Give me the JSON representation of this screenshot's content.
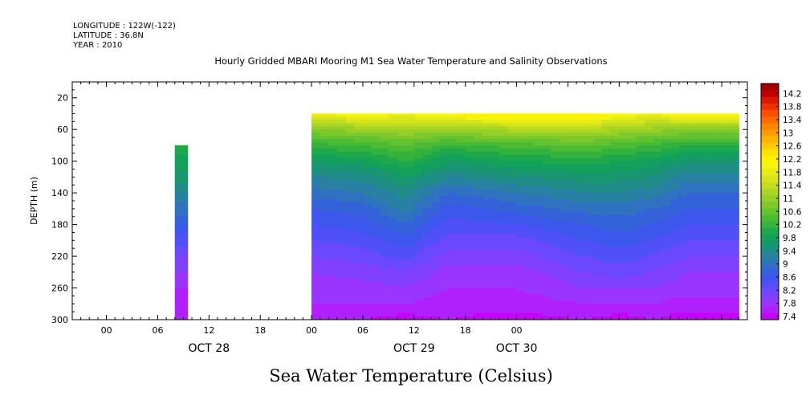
{
  "header": {
    "longitude": "LONGITUDE : 122W(-122)",
    "latitude": "LATITUDE : 36.8N",
    "year": "YEAR : 2010"
  },
  "chart_data": {
    "type": "heatmap",
    "title": "Hourly Gridded MBARI Mooring M1 Sea Water Temperature and Salinity Observations",
    "variable_label": "Sea Water Temperature (Celsius)",
    "ylabel": "DEPTH (m)",
    "y_inverted": true,
    "ylim": [
      0,
      300
    ],
    "y_ticks": [
      20,
      60,
      100,
      140,
      180,
      220,
      260,
      300
    ],
    "x_units": "hours since Oct 28 2010 00:00",
    "xlim": [
      -4,
      75
    ],
    "x_ticks": [
      {
        "t": 0,
        "label": "00"
      },
      {
        "t": 6,
        "label": "06"
      },
      {
        "t": 12,
        "label": "12"
      },
      {
        "t": 18,
        "label": "18"
      },
      {
        "t": 24,
        "label": "00"
      },
      {
        "t": 30,
        "label": "06"
      },
      {
        "t": 36,
        "label": "12"
      },
      {
        "t": 42,
        "label": "18"
      },
      {
        "t": 48,
        "label": "00"
      }
    ],
    "date_labels": [
      {
        "t": 12,
        "label": "OCT 28"
      },
      {
        "t": 36,
        "label": "OCT 29"
      },
      {
        "t": 48,
        "label": "OCT 30"
      }
    ],
    "colorbar": {
      "levels": [
        7.4,
        7.6,
        7.8,
        8.0,
        8.2,
        8.4,
        8.6,
        8.8,
        9.0,
        9.2,
        9.4,
        9.6,
        9.8,
        10.0,
        10.2,
        10.4,
        10.6,
        10.8,
        11.0,
        11.2,
        11.4,
        11.6,
        11.8,
        12.0,
        12.2,
        12.4,
        12.6,
        12.8,
        13.0,
        13.2,
        13.4,
        13.6,
        13.8,
        14.0,
        14.2,
        14.4
      ],
      "labels": [
        "7.4",
        "7.8",
        "8.2",
        "8.6",
        "9",
        "9.4",
        "9.8",
        "10.2",
        "10.6",
        "11",
        "11.4",
        "11.8",
        "12.2",
        "12.6",
        "13",
        "13.4",
        "13.8",
        "14.2"
      ],
      "colors": [
        "#c800ff",
        "#b020ff",
        "#9a35ff",
        "#8040ff",
        "#6a48ff",
        "#5050f8",
        "#3c58ec",
        "#3462d8",
        "#2e72c0",
        "#2880a4",
        "#208c88",
        "#189670",
        "#12a05a",
        "#1fa84a",
        "#34b23c",
        "#4cbb33",
        "#64c22e",
        "#7ec82a",
        "#96cf26",
        "#aed522",
        "#c2dc1e",
        "#d6e41a",
        "#e8ec14",
        "#f6f40e",
        "#fff200",
        "#ffe000",
        "#ffcc00",
        "#ffb400",
        "#ff9c00",
        "#ff8400",
        "#ff6a00",
        "#ff4e00",
        "#f03000",
        "#d81800",
        "#c00000",
        "#a00000"
      ]
    },
    "depths": [
      40,
      60,
      80,
      100,
      120,
      140,
      160,
      180,
      200,
      220,
      240,
      260,
      280,
      300
    ],
    "series": [
      {
        "time": 8.5,
        "values": [
          null,
          null,
          10.1,
          9.9,
          9.7,
          9.4,
          9.1,
          8.8,
          8.5,
          8.2,
          8.0,
          7.8,
          7.7,
          7.6
        ]
      },
      {
        "time": 24,
        "values": [
          12.0,
          11.0,
          10.3,
          9.8,
          9.4,
          9.1,
          8.8,
          8.6,
          8.4,
          8.2,
          8.0,
          7.9,
          7.8,
          7.6
        ]
      },
      {
        "time": 30,
        "values": [
          12.2,
          11.1,
          10.4,
          9.9,
          9.5,
          9.2,
          8.9,
          8.7,
          8.5,
          8.3,
          8.1,
          7.9,
          7.8,
          7.6
        ]
      },
      {
        "time": 35,
        "values": [
          12.0,
          11.2,
          10.6,
          10.2,
          9.8,
          9.5,
          9.3,
          9.0,
          8.7,
          8.5,
          8.2,
          8.0,
          7.8,
          7.5
        ]
      },
      {
        "time": 40,
        "values": [
          12.3,
          11.2,
          10.3,
          9.8,
          9.4,
          9.0,
          8.7,
          8.5,
          8.3,
          8.1,
          7.9,
          7.8,
          7.7,
          7.6
        ]
      },
      {
        "time": 48,
        "values": [
          12.4,
          11.3,
          10.5,
          10.0,
          9.6,
          9.2,
          8.9,
          8.6,
          8.3,
          8.1,
          7.9,
          7.8,
          7.7,
          7.5
        ]
      },
      {
        "time": 56,
        "values": [
          12.5,
          11.4,
          10.6,
          10.1,
          9.7,
          9.4,
          9.1,
          8.8,
          8.6,
          8.4,
          8.2,
          8.0,
          7.8,
          7.6
        ]
      },
      {
        "time": 60,
        "values": [
          12.2,
          11.2,
          10.5,
          10.0,
          9.7,
          9.4,
          9.1,
          8.9,
          8.7,
          8.5,
          8.3,
          8.0,
          7.8,
          7.5
        ]
      },
      {
        "time": 64,
        "values": [
          12.0,
          11.1,
          10.4,
          9.9,
          9.6,
          9.3,
          9.0,
          8.8,
          8.6,
          8.4,
          8.2,
          8.0,
          7.8,
          7.6
        ]
      },
      {
        "time": 68,
        "values": [
          12.3,
          11.0,
          10.2,
          9.7,
          9.3,
          9.0,
          8.8,
          8.6,
          8.4,
          8.2,
          8.0,
          7.9,
          7.7,
          7.5
        ]
      }
    ]
  }
}
